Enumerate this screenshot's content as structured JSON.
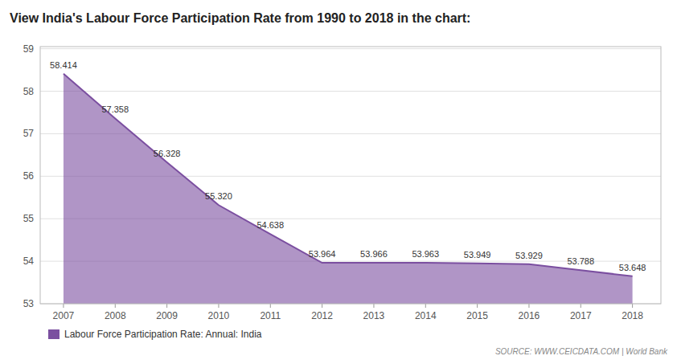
{
  "chart_data": {
    "type": "area",
    "title": "View India's Labour Force Participation Rate from 1990 to 2018 in the chart:",
    "x": [
      2007,
      2008,
      2009,
      2010,
      2011,
      2012,
      2013,
      2014,
      2015,
      2016,
      2017,
      2018
    ],
    "series": [
      {
        "name": "Labour Force Participation Rate: Annual: India",
        "color": "#7b4fa0",
        "values": [
          58.414,
          57.358,
          56.328,
          55.32,
          54.638,
          53.964,
          53.966,
          53.963,
          53.949,
          53.929,
          53.788,
          53.648
        ],
        "value_labels": [
          "58.414",
          "57.358",
          "56.328",
          "55.320",
          "54.638",
          "53.964",
          "53.966",
          "53.963",
          "53.949",
          "53.929",
          "53.788",
          "53.648"
        ]
      }
    ],
    "xlim": [
      2006.55,
      2018.55
    ],
    "xticks": [
      2007,
      2008,
      2009,
      2010,
      2011,
      2012,
      2013,
      2014,
      2015,
      2016,
      2017,
      2018
    ],
    "ylim": [
      53,
      59.05
    ],
    "yticks": [
      53,
      54,
      55,
      56,
      57,
      58,
      59
    ],
    "grid": true,
    "data_labels": true,
    "legend": "bottom",
    "source": "SOURCE: WWW.CEICDATA.COM | World Bank"
  }
}
